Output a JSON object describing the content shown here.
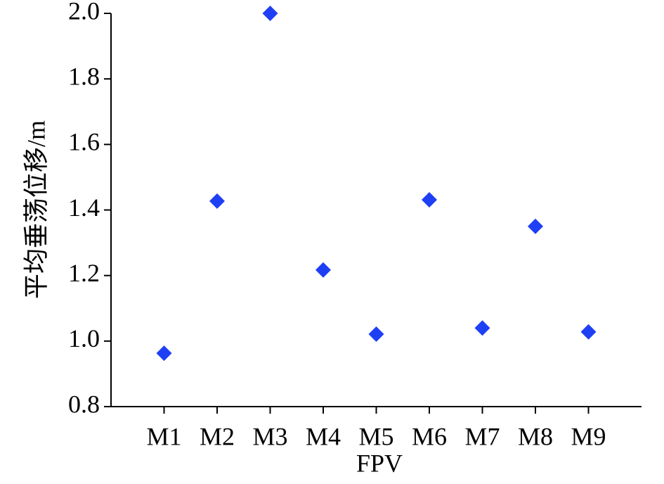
{
  "chart_data": {
    "type": "scatter",
    "x_label": "FPV",
    "y_label": "平均垂荡位移/m",
    "categories": [
      "M1",
      "M2",
      "M3",
      "M4",
      "M5",
      "M6",
      "M7",
      "M8",
      "M9"
    ],
    "values": [
      0.963,
      1.427,
      2.0,
      1.217,
      1.021,
      1.431,
      1.04,
      1.35,
      1.028
    ],
    "color": "#1f3ff5",
    "marker": "diamond",
    "ylim": [
      0.8,
      2.0
    ],
    "yticks": [
      0.8,
      {
        "value": 1,
        "label": "1.0"
      },
      1.2,
      1.4,
      1.6,
      1.8,
      {
        "value": 2,
        "label": "2.0"
      }
    ],
    "grid": false
  }
}
